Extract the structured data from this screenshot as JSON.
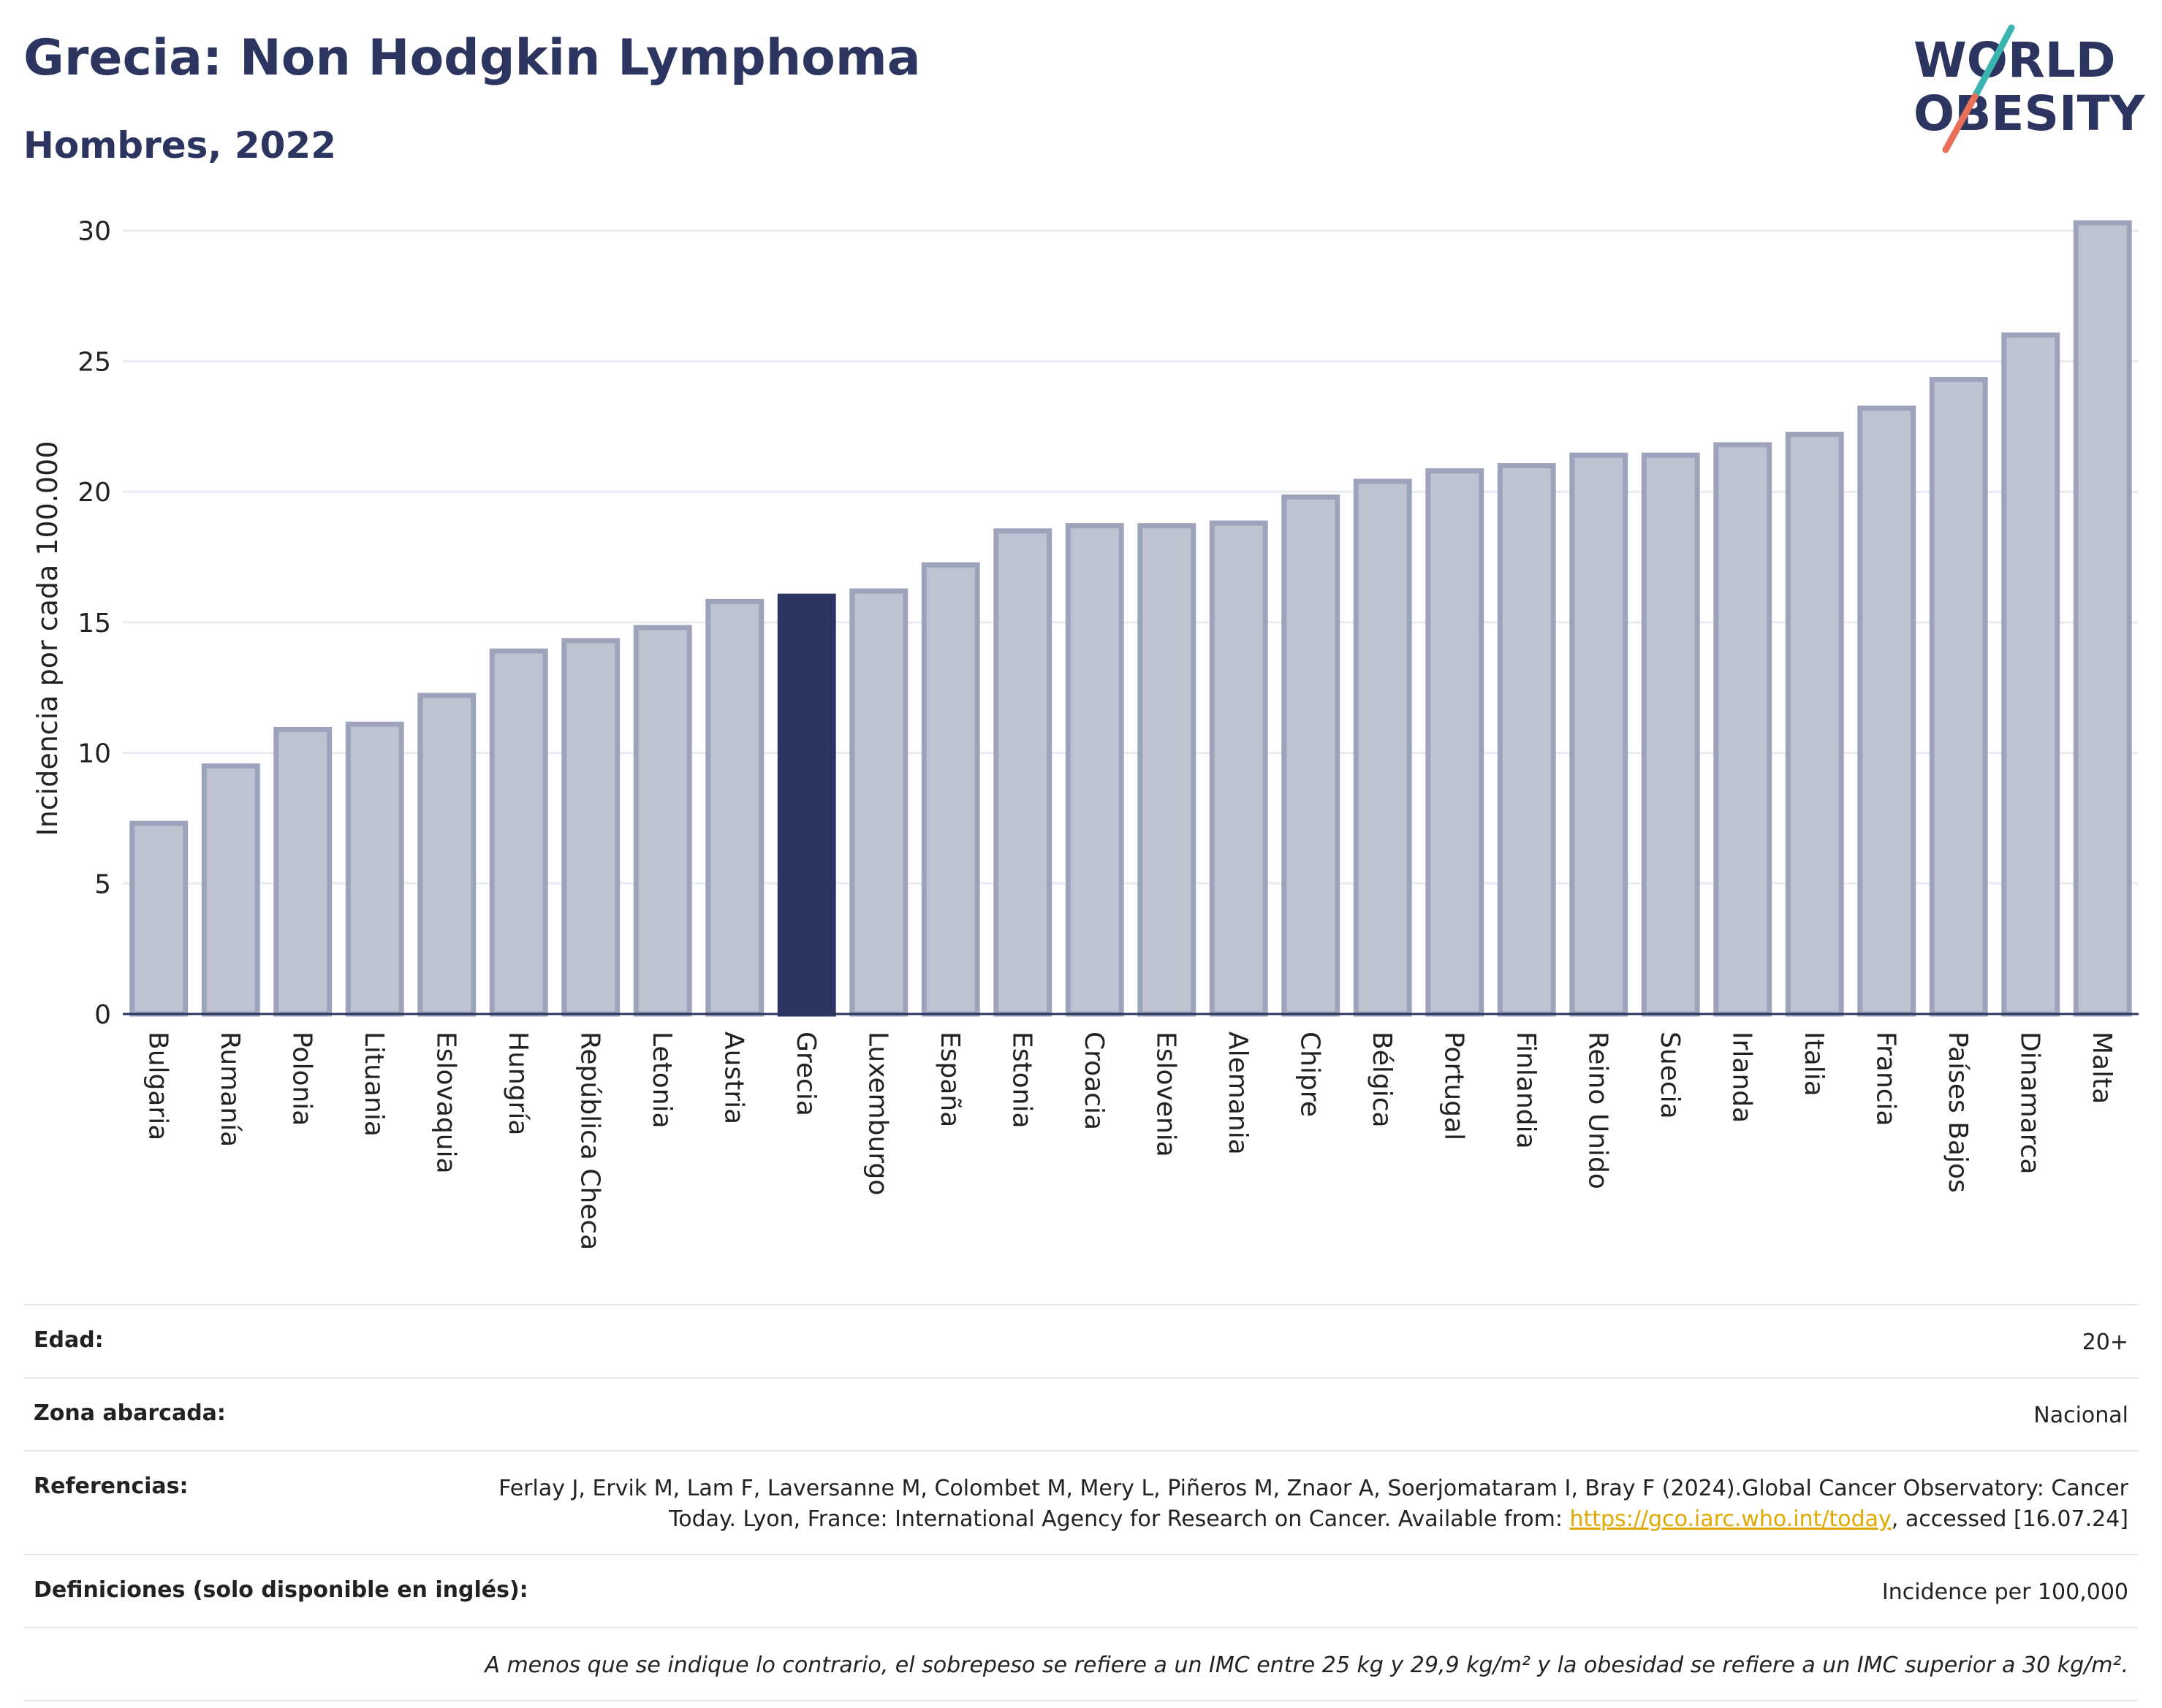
{
  "header": {
    "title": "Grecia: Non Hodgkin Lymphoma",
    "subtitle": "Hombres, 2022"
  },
  "logo": {
    "line1": "WORLD",
    "line2": "OBESITY"
  },
  "colors": {
    "highlight": "#2c3560",
    "bar_fill": "#bfc3d1",
    "bar_stroke": "#9da3bb",
    "title": "#2c3560",
    "link": "#e0a800"
  },
  "chart_data": {
    "type": "bar",
    "ylabel": "Incidencia por cada 100.000",
    "xlabel": "",
    "ylim": [
      0,
      31
    ],
    "yticks": [
      0,
      5,
      10,
      15,
      20,
      25,
      30
    ],
    "grid": true,
    "highlight": "Grecia",
    "categories": [
      "Bulgaria",
      "Rumanía",
      "Polonia",
      "Lituania",
      "Eslovaquia",
      "Hungría",
      "República Checa",
      "Letonia",
      "Austria",
      "Grecia",
      "Luxemburgo",
      "España",
      "Estonia",
      "Croacia",
      "Eslovenia",
      "Alemania",
      "Chipre",
      "Bélgica",
      "Portugal",
      "Finlandia",
      "Reino Unido",
      "Suecia",
      "Irlanda",
      "Italia",
      "Francia",
      "Países Bajos",
      "Dinamarca",
      "Malta"
    ],
    "values": [
      7.3,
      9.5,
      10.9,
      11.1,
      12.2,
      13.9,
      14.3,
      14.8,
      15.8,
      16.0,
      16.2,
      17.2,
      18.5,
      18.7,
      18.7,
      18.8,
      19.8,
      20.4,
      20.8,
      21.0,
      21.4,
      21.4,
      21.8,
      22.2,
      23.2,
      24.3,
      26.0,
      30.3
    ]
  },
  "info": {
    "edad_label": "Edad:",
    "edad_value": "20+",
    "zona_label": "Zona abarcada:",
    "zona_value": "Nacional",
    "ref_label": "Referencias:",
    "ref_text_1": "Ferlay J, Ervik M, Lam F, Laversanne M, Colombet M, Mery L, Piñeros M, Znaor A, Soerjomataram I, Bray F (2024).Global Cancer Observatory: Cancer Today. Lyon, France: International Agency for Research on Cancer. Available from: ",
    "ref_link": "https://gco.iarc.who.int/today",
    "ref_text_2": ", accessed [16.07.24]",
    "def_label": "Definiciones (solo disponible en inglés):",
    "def_value": "Incidence per 100,000",
    "note": "A menos que se indique lo contrario, el sobrepeso se refiere a un IMC entre 25 kg y 29,9 kg/m² y la obesidad se refiere a un IMC superior a 30 kg/m²."
  }
}
